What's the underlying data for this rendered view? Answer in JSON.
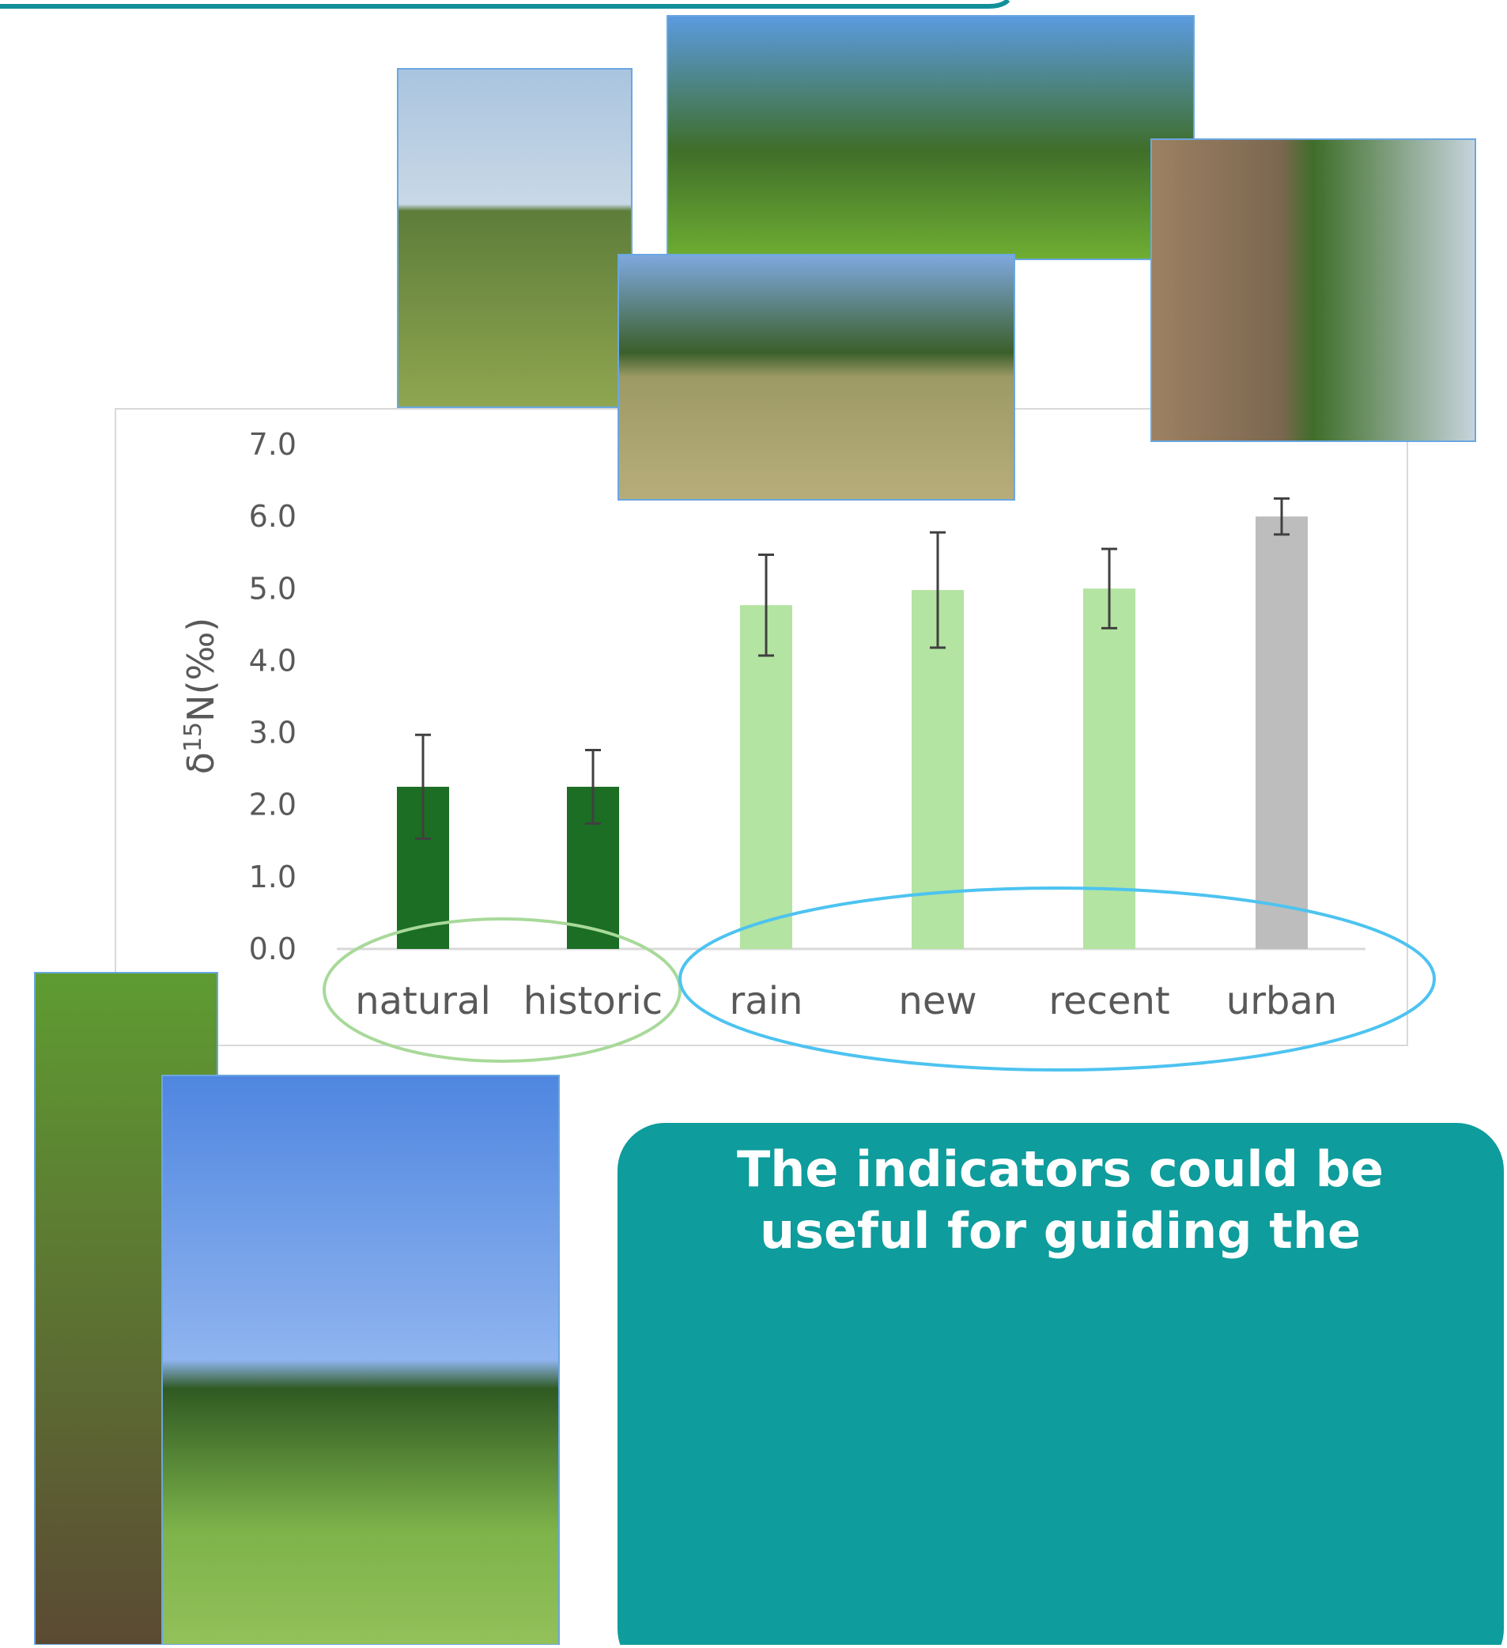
{
  "chart_data": {
    "type": "bar",
    "ylabel": {
      "prefix": "δ",
      "sup": "15",
      "suffix": "N(‰)"
    },
    "categories": [
      "natural",
      "historic",
      "rain",
      "new",
      "recent",
      "urban"
    ],
    "values": [
      2.25,
      2.25,
      4.77,
      4.98,
      5.0,
      6.0
    ],
    "errors": [
      0.72,
      0.51,
      0.7,
      0.8,
      0.55,
      0.25
    ],
    "colors": [
      "#1b6e23",
      "#1b6e23",
      "#b3e4a1",
      "#b3e4a1",
      "#b3e4a1",
      "#bdbdbd"
    ],
    "ylim": [
      0,
      7
    ],
    "yticks": [
      {
        "value": 0,
        "label": "0.0"
      },
      {
        "value": 1,
        "label": "1.0"
      },
      {
        "value": 2,
        "label": "2.0"
      },
      {
        "value": 3,
        "label": "3.0"
      },
      {
        "value": 4,
        "label": "4.0"
      },
      {
        "value": 5,
        "label": "5.0"
      },
      {
        "value": 6,
        "label": "6.0"
      },
      {
        "value": 7,
        "label": "7.0"
      }
    ],
    "grid": false
  },
  "callout": {
    "text": "The indicators could be useful for guiding the"
  }
}
